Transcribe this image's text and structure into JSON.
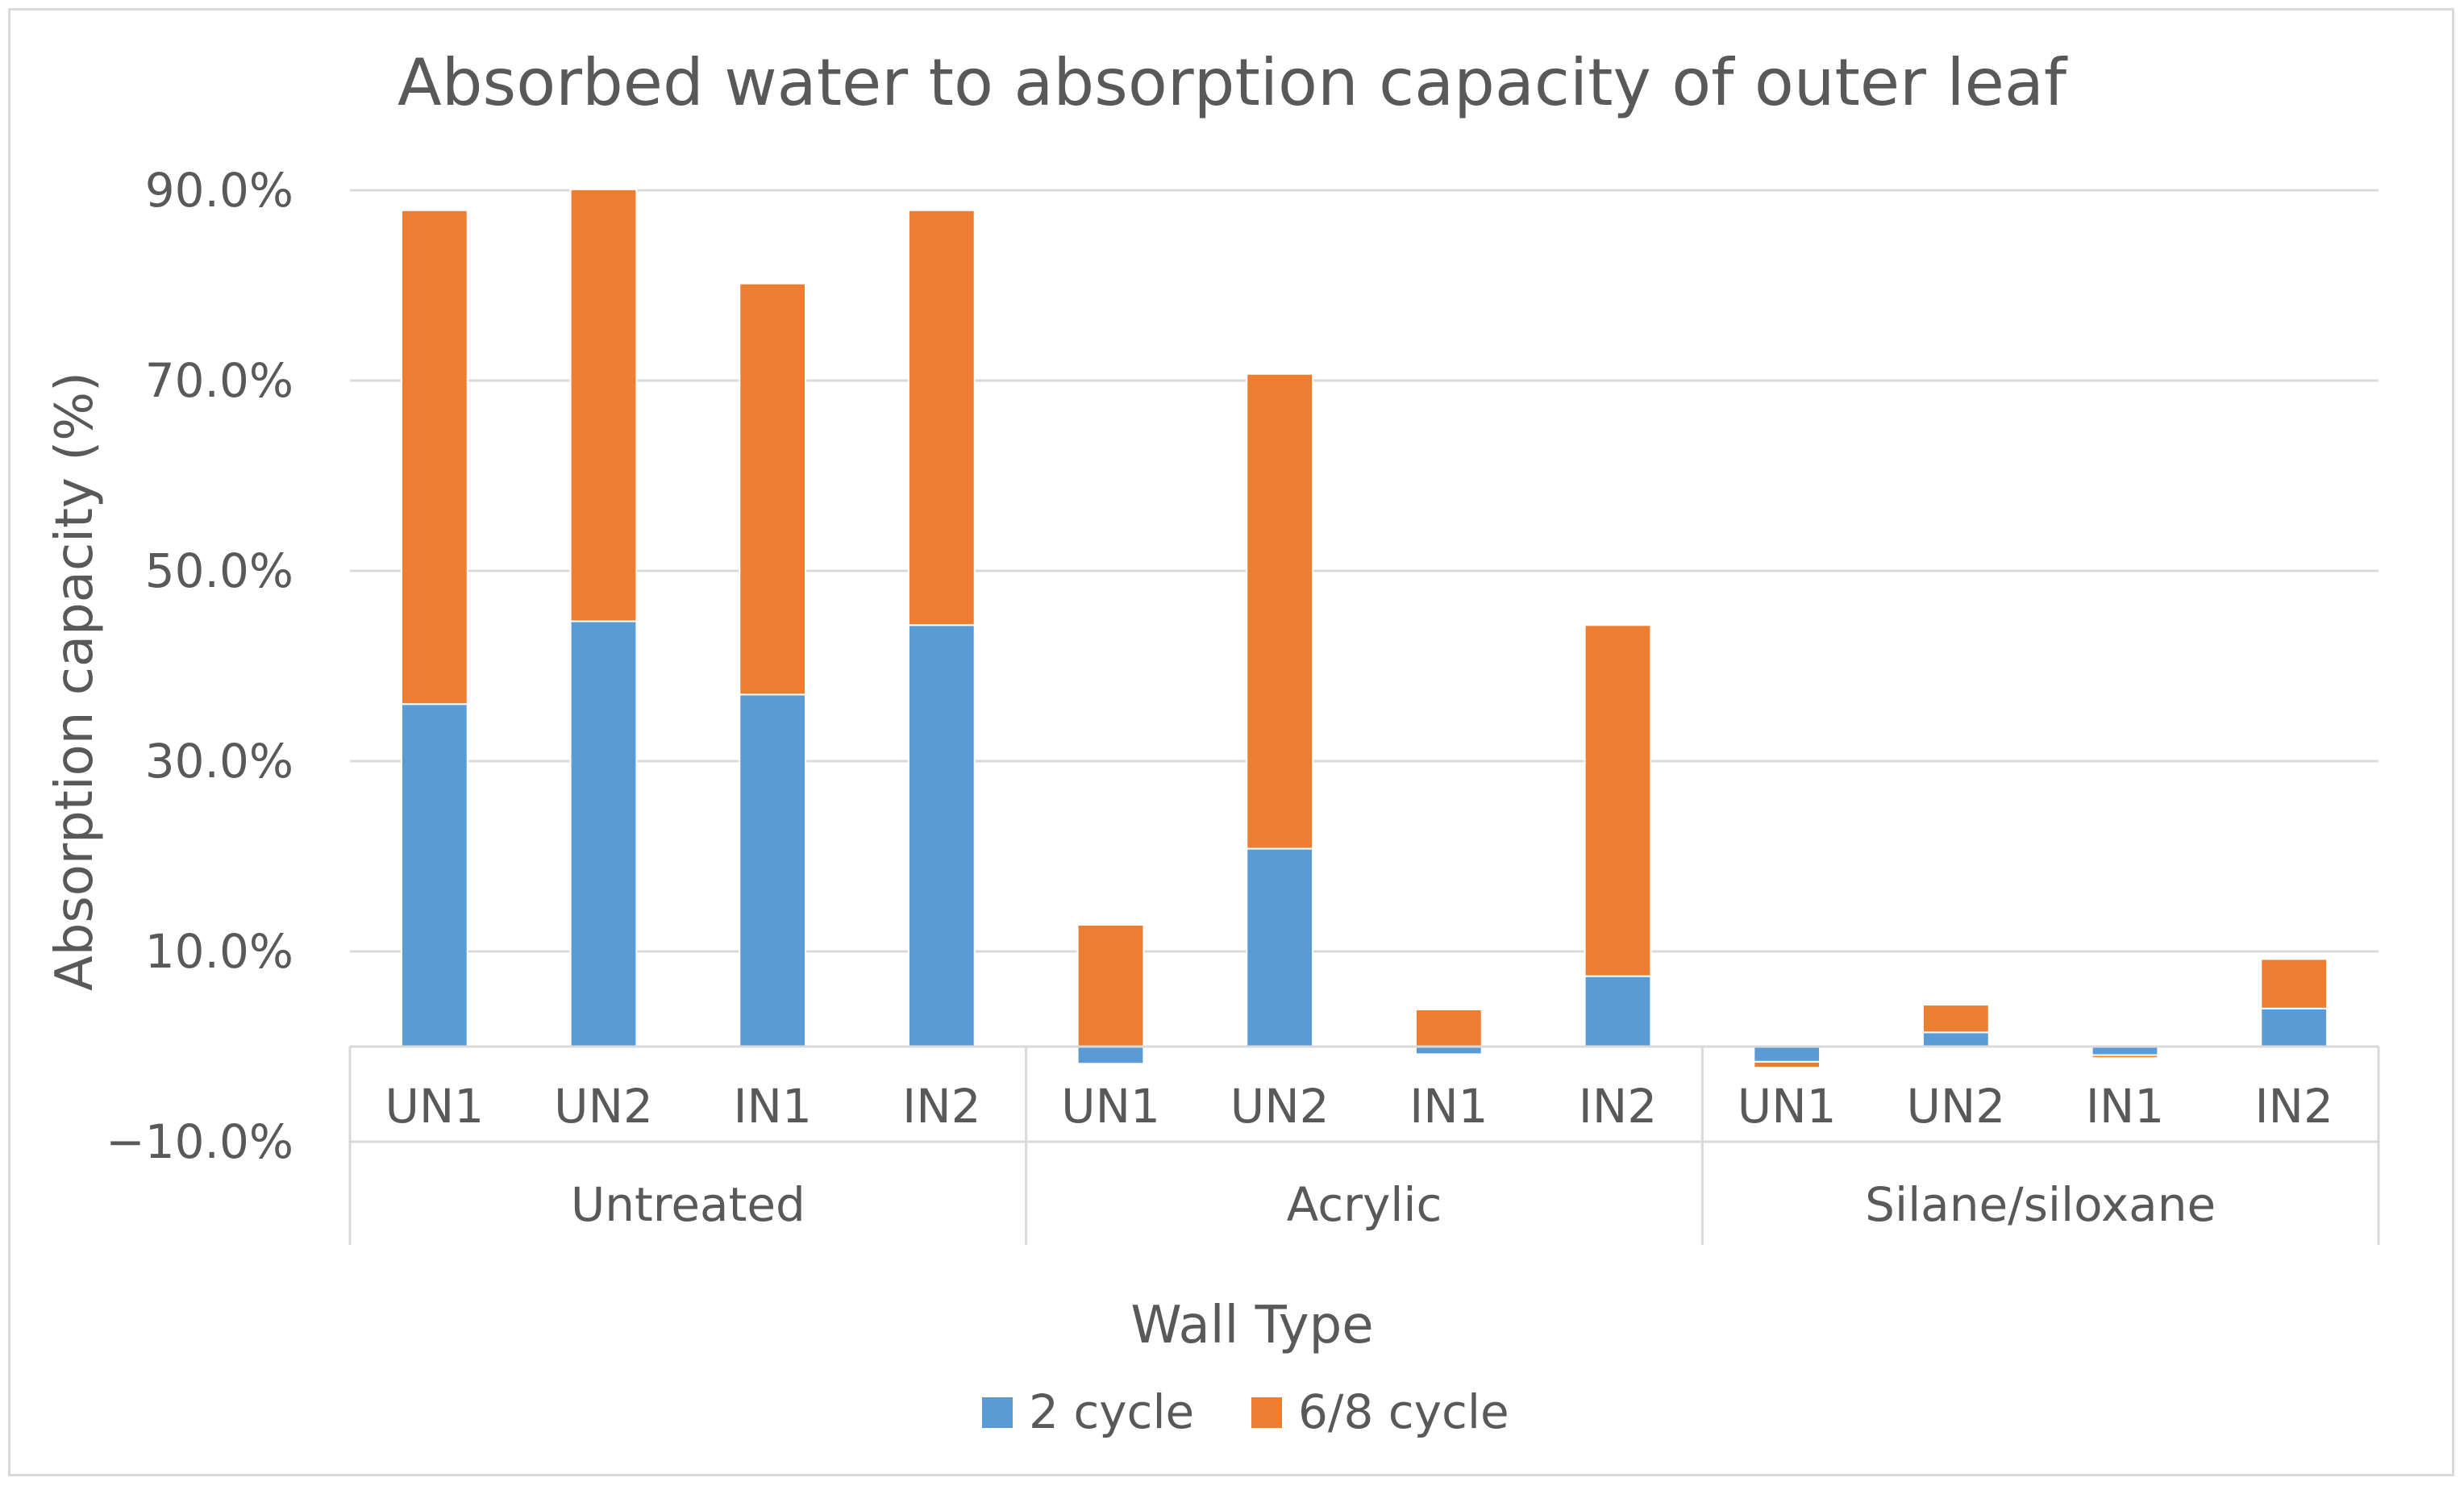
{
  "chart_data": {
    "type": "bar",
    "stacked": true,
    "title": "Absorbed water to absorption capacity of outer leaf",
    "xlabel": "Wall Type",
    "ylabel": "Absorption capacity (%)",
    "ylim": [
      -10,
      90
    ],
    "yticks": [
      90,
      70,
      50,
      30,
      10,
      -10
    ],
    "ytick_labels": [
      "90.0%",
      "70.0%",
      "50.0%",
      "30.0%",
      "10.0%",
      "−10.0%"
    ],
    "groups": [
      {
        "name": "Untreated",
        "categories": [
          "UN1",
          "UN2",
          "IN1",
          "IN2"
        ]
      },
      {
        "name": "Acrylic",
        "categories": [
          "UN1",
          "UN2",
          "IN1",
          "IN2"
        ]
      },
      {
        "name": "Silane/siloxane",
        "categories": [
          "UN1",
          "UN2",
          "IN1",
          "IN2"
        ]
      }
    ],
    "series": [
      {
        "name": "2 cycle",
        "color": "#5b9bd5",
        "values": [
          36,
          44.7,
          37,
          44.3,
          -1.8,
          20.8,
          -0.8,
          7.4,
          -1.6,
          1.5,
          -0.9,
          4
        ]
      },
      {
        "name": "6/8 cycle",
        "color": "#ed7d31",
        "values": [
          51.9,
          45.4,
          43.2,
          43.6,
          12.8,
          49.9,
          3.9,
          36.9,
          -0.6,
          2.9,
          -0.3,
          5.2
        ]
      }
    ],
    "grid": true,
    "legend": "bottom"
  }
}
